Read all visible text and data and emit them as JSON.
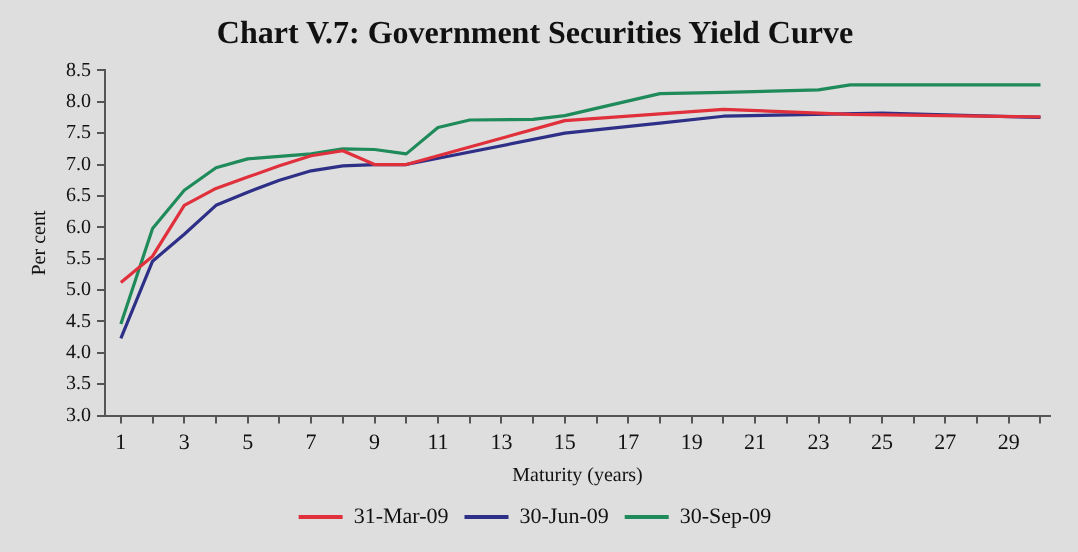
{
  "chart_data": {
    "type": "line",
    "title": "Chart V.7: Government Securities Yield Curve",
    "xlabel": "Maturity (years)",
    "ylabel": "Per cent",
    "xlim": [
      0.5,
      30.3
    ],
    "xticks": [
      1,
      {
        "value": 2,
        "label": null
      },
      3,
      {
        "value": 4,
        "label": null
      },
      5,
      {
        "value": 6,
        "label": null
      },
      7,
      {
        "value": 8,
        "label": null
      },
      9,
      {
        "value": 10,
        "label": null
      },
      11,
      {
        "value": 12,
        "label": null
      },
      13,
      {
        "value": 14,
        "label": null
      },
      15,
      {
        "value": 16,
        "label": null
      },
      17,
      {
        "value": 18,
        "label": null
      },
      19,
      {
        "value": 20,
        "label": null
      },
      21,
      {
        "value": 22,
        "label": null
      },
      23,
      {
        "value": 24,
        "label": null
      },
      25,
      {
        "value": 26,
        "label": null
      },
      27,
      {
        "value": 28,
        "label": null
      },
      29,
      {
        "value": 30,
        "label": null
      }
    ],
    "ylim": [
      3,
      8.5
    ],
    "yticks": [
      {
        "value": 3,
        "label": "3.0"
      },
      {
        "value": 3.5,
        "label": "3.5"
      },
      {
        "value": 4,
        "label": "4.0"
      },
      {
        "value": 4.5,
        "label": "4.5"
      },
      {
        "value": 5,
        "label": "5.0"
      },
      {
        "value": 5.5,
        "label": "5.5"
      },
      {
        "value": 6,
        "label": "6.0"
      },
      {
        "value": 6.5,
        "label": "6.5"
      },
      {
        "value": 7,
        "label": "7.0"
      },
      {
        "value": 7.5,
        "label": "7.5"
      },
      {
        "value": 8,
        "label": "8.0"
      },
      {
        "value": 8.5,
        "label": "8.5"
      }
    ],
    "grid": false,
    "legend": "bottom",
    "marker": "none",
    "line_style": "solid",
    "series": [
      {
        "name": "31-Mar-09",
        "color": "#e0303c",
        "x": [
          1,
          2,
          3,
          4,
          5,
          6,
          7,
          8,
          9,
          10,
          15,
          20,
          24,
          30
        ],
        "values": [
          5.12,
          5.54,
          6.35,
          6.62,
          6.8,
          6.98,
          7.14,
          7.22,
          7.0,
          7.0,
          7.7,
          7.88,
          7.8,
          7.76
        ]
      },
      {
        "name": "30-Jun-09",
        "color": "#2e2f86",
        "x": [
          1,
          2,
          3,
          4,
          5,
          6,
          7,
          8,
          9,
          10,
          15,
          18,
          20,
          25,
          30
        ],
        "values": [
          4.23,
          5.46,
          5.89,
          6.35,
          6.56,
          6.75,
          6.9,
          6.98,
          7.0,
          7.0,
          7.5,
          7.66,
          7.77,
          7.82,
          7.75
        ]
      },
      {
        "name": "30-Sep-09",
        "color": "#1f8a5a",
        "x": [
          1,
          2,
          3,
          4,
          5,
          6,
          7,
          8,
          9,
          10,
          11,
          12,
          14,
          15,
          18,
          20,
          23,
          24,
          30
        ],
        "values": [
          4.46,
          5.98,
          6.59,
          6.95,
          7.09,
          7.13,
          7.17,
          7.25,
          7.24,
          7.17,
          7.59,
          7.71,
          7.72,
          7.78,
          8.13,
          8.15,
          8.19,
          8.27,
          8.27
        ]
      }
    ]
  }
}
